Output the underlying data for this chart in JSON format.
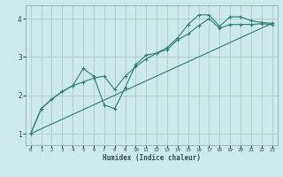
{
  "xlabel": "Humidex (Indice chaleur)",
  "ylabel": "",
  "background_color": "#cdeaea",
  "grid_color": "#b0c8c8",
  "line_color": "#2e7d6e",
  "xlim": [
    -0.5,
    23.5
  ],
  "ylim": [
    0.7,
    4.35
  ],
  "xticks": [
    0,
    1,
    2,
    3,
    4,
    5,
    6,
    7,
    8,
    9,
    10,
    11,
    12,
    13,
    14,
    15,
    16,
    17,
    18,
    19,
    20,
    21,
    22,
    23
  ],
  "yticks": [
    1,
    2,
    3,
    4
  ],
  "curve1_x": [
    0,
    1,
    2,
    3,
    4,
    5,
    6,
    7,
    8,
    9,
    10,
    11,
    12,
    13,
    14,
    15,
    16,
    17,
    18,
    19,
    20,
    21,
    22,
    23
  ],
  "curve1_y": [
    1.0,
    1.65,
    1.9,
    2.1,
    2.25,
    2.7,
    2.5,
    1.75,
    1.65,
    2.2,
    2.8,
    3.05,
    3.1,
    3.25,
    3.5,
    3.85,
    4.1,
    4.1,
    3.8,
    4.05,
    4.05,
    3.95,
    3.9,
    3.88
  ],
  "curve2_x": [
    0,
    1,
    2,
    3,
    4,
    5,
    6,
    7,
    8,
    9,
    10,
    11,
    12,
    13,
    14,
    15,
    16,
    17,
    18,
    19,
    20,
    21,
    22,
    23
  ],
  "curve2_y": [
    1.0,
    1.65,
    1.9,
    2.1,
    2.25,
    2.35,
    2.45,
    2.5,
    2.15,
    2.5,
    2.75,
    2.95,
    3.1,
    3.2,
    3.45,
    3.6,
    3.82,
    4.0,
    3.75,
    3.85,
    3.85,
    3.85,
    3.87,
    3.85
  ],
  "line_x": [
    0,
    23
  ],
  "line_y": [
    1.0,
    3.88
  ]
}
